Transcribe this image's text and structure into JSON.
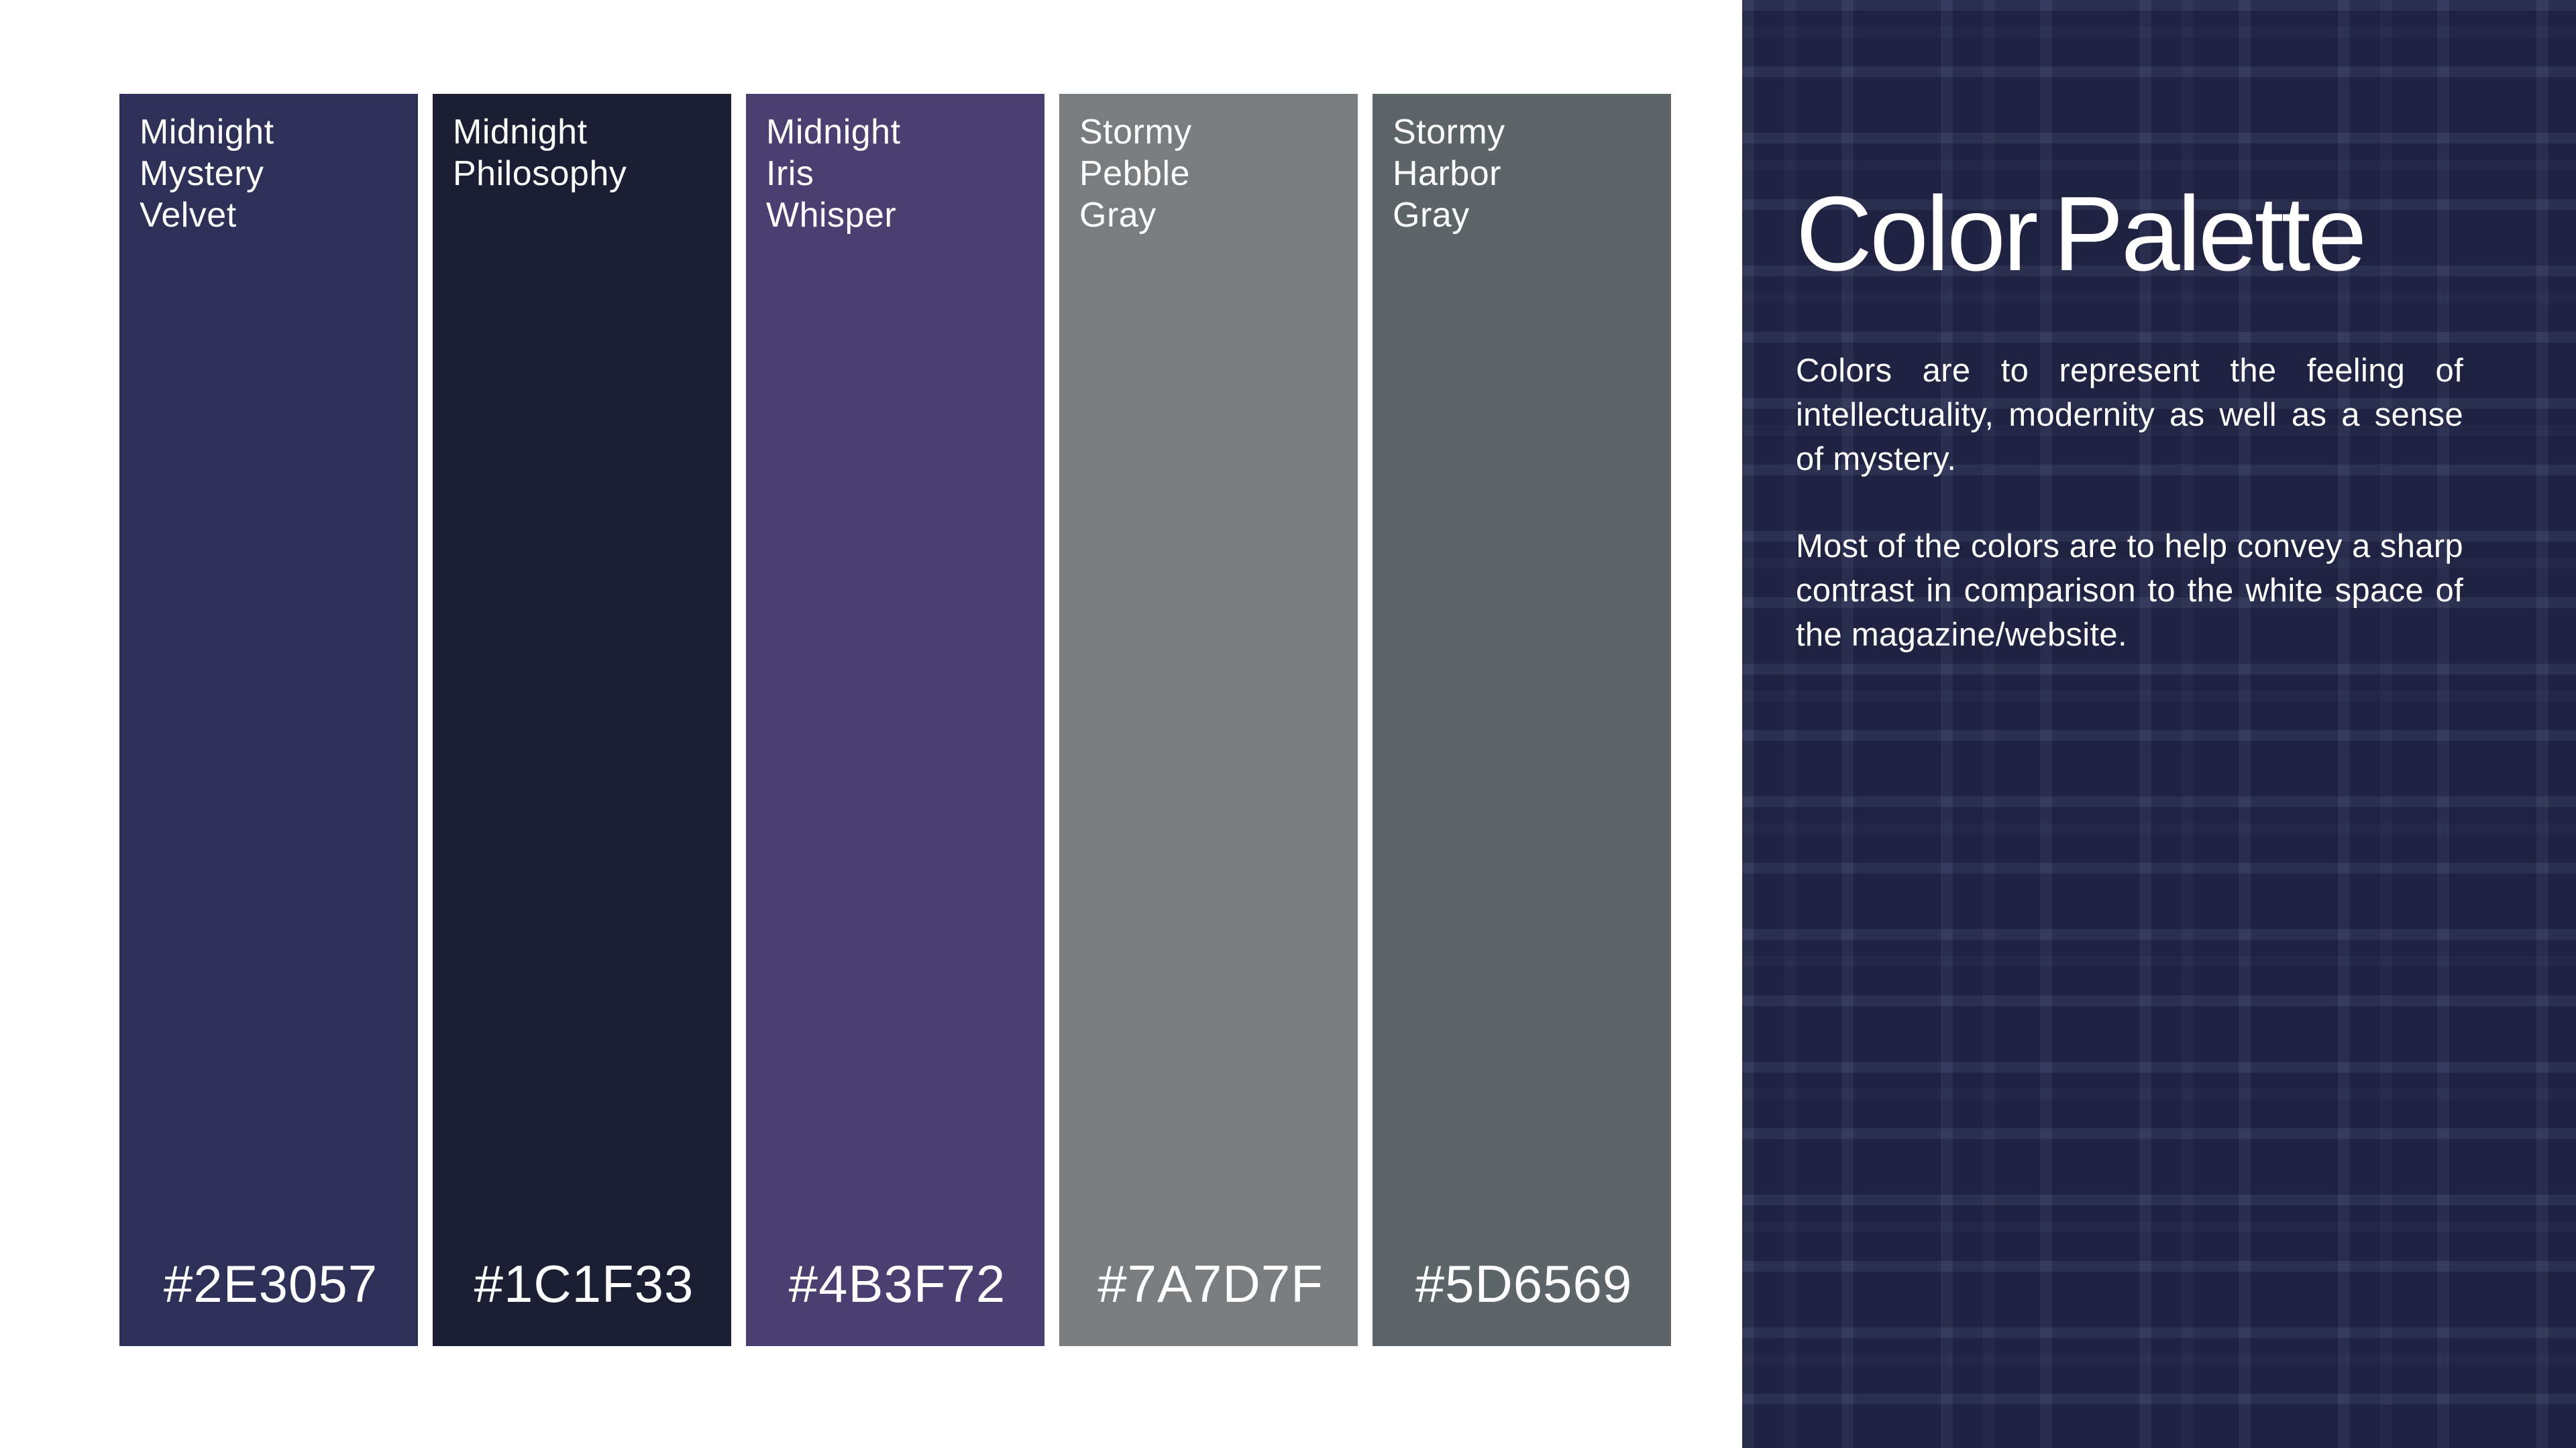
{
  "palette": {
    "swatches": [
      {
        "name": "Midnight Mystery Velvet",
        "name_lines": [
          "Midnight",
          "Mystery",
          "Velvet"
        ],
        "hex": "#2E3057"
      },
      {
        "name": "Midnight Philosophy",
        "name_lines": [
          "Midnight",
          "Philosophy"
        ],
        "hex": "#1C1F33"
      },
      {
        "name": "Midnight Iris Whisper",
        "name_lines": [
          "Midnight",
          "Iris",
          "Whisper"
        ],
        "hex": "#4B3F72"
      },
      {
        "name": "Stormy Pebble Gray",
        "name_lines": [
          "Stormy",
          "Pebble",
          "Gray"
        ],
        "hex": "#7A7D7F"
      },
      {
        "name": "Stormy Harbor Gray",
        "name_lines": [
          "Stormy",
          "Harbor",
          "Gray"
        ],
        "hex": "#5D6569"
      }
    ]
  },
  "info_panel": {
    "title": "Color Palette",
    "paragraphs": [
      "Colors are to represent the feeling of intellectuality, modernity as well as a sense of mystery.",
      "Most of the colors are to help convey a sharp contrast in comparison to the white space of the magazine/website."
    ],
    "colors": {
      "panel_background": "#1F2240",
      "pattern_line": "#2A2E4E",
      "text": "#FFFFFF",
      "page_background": "#FFFFFF"
    }
  }
}
